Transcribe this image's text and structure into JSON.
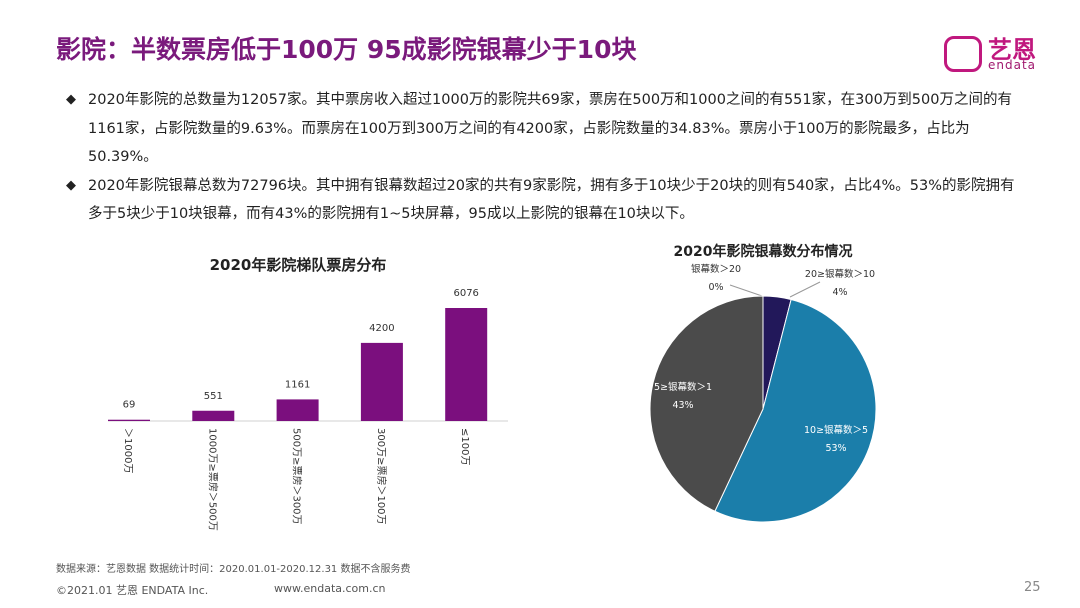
{
  "header": {
    "title": "影院：半数票房低于100万 95成影院银幕少于10块"
  },
  "logo": {
    "brand": "艺恩",
    "sub": "endata"
  },
  "bullets": [
    "2020年影院的总数量为12057家。其中票房收入超过1000万的影院共69家，票房在500万和1000之间的有551家，在300万到500万之间的有1161家，占影院数量的9.63%。而票房在100万到300万之间的有4200家，占影院数量的34.83%。票房小于100万的影院最多，占比为50.39%。",
    "2020年影院银幕总数为72796块。其中拥有银幕数超过20家的共有9家影院，拥有多于10块少于20块的则有540家，占比4%。53%的影院拥有多于5块少于10块银幕，而有43%的影院拥有1~5块屏幕，95成以上影院的银幕在10块以下。"
  ],
  "chart_data": [
    {
      "type": "bar",
      "title": "2020年影院梯队票房分布",
      "categories": [
        "＞1000万",
        "1000万≥票房＞500万",
        "500万≥票房＞300万",
        "300万≥票房＞100万",
        "≤100万"
      ],
      "values": [
        69,
        551,
        1161,
        4200,
        6076
      ],
      "color": "#7b0f7e"
    },
    {
      "type": "pie",
      "title": "2020年影院银幕数分布情况",
      "categories": [
        "银幕数＞20",
        "20≥银幕数＞10",
        "10≥银幕数＞5",
        "5≥银幕数＞1"
      ],
      "values": [
        0,
        4,
        53,
        43
      ],
      "value_labels": [
        "0%",
        "4%",
        "53%",
        "43%"
      ],
      "colors": [
        "#7f7f7f",
        "#22185a",
        "#1b7eaa",
        "#4b4b4b"
      ]
    }
  ],
  "footer": {
    "source": "数据来源：艺恩数据   数据统计时间：2020.01.01-2020.12.31 数据不含服务费",
    "copyright": "©2021.01 艺恩 ENDATA Inc.",
    "website": "www.endata.com.cn",
    "page": "25"
  }
}
